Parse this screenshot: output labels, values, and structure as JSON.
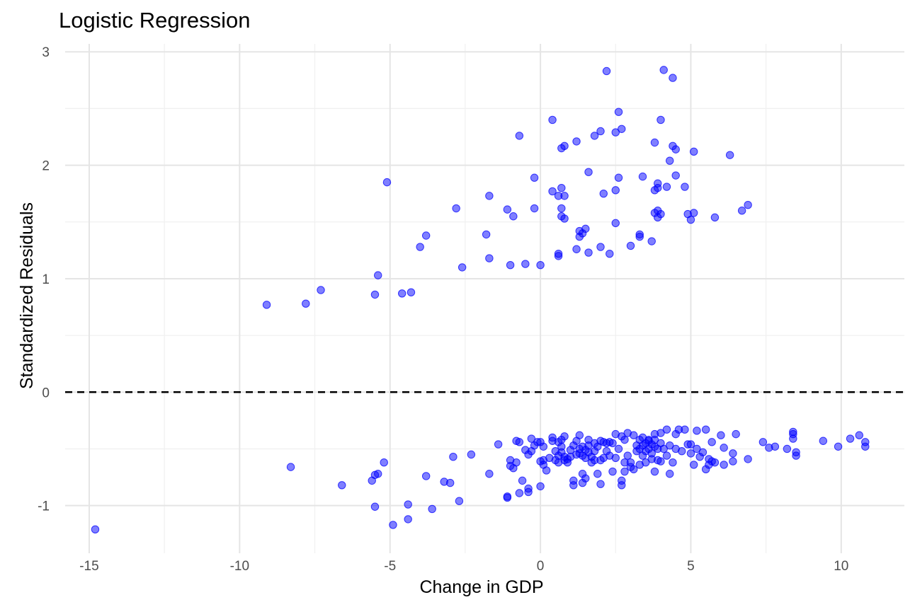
{
  "chart_data": {
    "type": "scatter",
    "title": "Logistic Regression",
    "xlabel": "Change in GDP",
    "ylabel": "Standardized Residuals",
    "xlim": [
      -15.8,
      12.1
    ],
    "ylim": [
      -1.42,
      3.07
    ],
    "x_ticks": [
      -15,
      -10,
      -5,
      0,
      5,
      10
    ],
    "x_tick_labels": [
      "-15",
      "-10",
      "-5",
      "0",
      "5",
      "10"
    ],
    "y_ticks": [
      -1,
      0,
      1,
      2,
      3
    ],
    "y_tick_labels": [
      "-1",
      "0",
      "1",
      "2",
      "3"
    ],
    "x_minor_ticks": [
      -12.5,
      -7.5,
      -2.5,
      2.5,
      7.5
    ],
    "y_minor_ticks": [
      -0.5,
      0.5,
      1.5,
      2.5
    ],
    "grid": true,
    "reference_line": {
      "y": 0,
      "style": "dashed",
      "color": "#000000"
    },
    "point_color": "#0000FF",
    "points": [
      [
        -14.8,
        -1.21
      ],
      [
        -9.1,
        0.77
      ],
      [
        -7.8,
        0.78
      ],
      [
        -7.3,
        0.9
      ],
      [
        -5.4,
        1.03
      ],
      [
        -5.5,
        0.86
      ],
      [
        -5.1,
        1.85
      ],
      [
        -4.6,
        0.87
      ],
      [
        -4.3,
        0.88
      ],
      [
        -4.0,
        1.28
      ],
      [
        -3.8,
        1.38
      ],
      [
        -2.8,
        1.62
      ],
      [
        -2.6,
        1.1
      ],
      [
        -1.8,
        1.39
      ],
      [
        -1.7,
        1.73
      ],
      [
        -1.7,
        1.18
      ],
      [
        -1.1,
        1.61
      ],
      [
        -1.0,
        1.12
      ],
      [
        -0.9,
        1.55
      ],
      [
        -0.7,
        2.26
      ],
      [
        -0.5,
        1.13
      ],
      [
        -0.2,
        1.89
      ],
      [
        -0.2,
        1.62
      ],
      [
        0.0,
        1.12
      ],
      [
        0.4,
        2.4
      ],
      [
        0.4,
        1.77
      ],
      [
        0.6,
        1.73
      ],
      [
        0.6,
        1.22
      ],
      [
        0.6,
        1.2
      ],
      [
        0.7,
        2.15
      ],
      [
        0.7,
        1.8
      ],
      [
        0.7,
        1.62
      ],
      [
        0.7,
        1.55
      ],
      [
        0.8,
        2.17
      ],
      [
        0.8,
        1.53
      ],
      [
        0.8,
        1.73
      ],
      [
        1.2,
        2.21
      ],
      [
        1.2,
        1.26
      ],
      [
        1.3,
        1.37
      ],
      [
        1.3,
        1.42
      ],
      [
        1.4,
        1.4
      ],
      [
        1.5,
        1.44
      ],
      [
        1.6,
        1.94
      ],
      [
        1.6,
        1.23
      ],
      [
        1.8,
        2.26
      ],
      [
        2.0,
        2.3
      ],
      [
        2.0,
        1.28
      ],
      [
        2.1,
        1.75
      ],
      [
        2.2,
        2.83
      ],
      [
        2.3,
        1.22
      ],
      [
        2.5,
        2.29
      ],
      [
        2.5,
        1.78
      ],
      [
        2.6,
        2.47
      ],
      [
        2.6,
        1.89
      ],
      [
        2.5,
        1.49
      ],
      [
        2.7,
        2.32
      ],
      [
        3.0,
        1.29
      ],
      [
        3.3,
        1.39
      ],
      [
        3.3,
        1.37
      ],
      [
        3.4,
        1.9
      ],
      [
        3.7,
        1.33
      ],
      [
        3.8,
        1.58
      ],
      [
        3.8,
        1.78
      ],
      [
        3.8,
        2.2
      ],
      [
        3.9,
        1.6
      ],
      [
        3.9,
        1.84
      ],
      [
        3.9,
        1.8
      ],
      [
        3.9,
        1.54
      ],
      [
        4.0,
        2.4
      ],
      [
        4.0,
        1.57
      ],
      [
        4.1,
        2.84
      ],
      [
        4.2,
        1.81
      ],
      [
        4.3,
        2.04
      ],
      [
        4.4,
        2.17
      ],
      [
        4.4,
        2.77
      ],
      [
        4.5,
        2.14
      ],
      [
        4.5,
        1.91
      ],
      [
        4.8,
        1.81
      ],
      [
        4.9,
        1.57
      ],
      [
        5.0,
        1.52
      ],
      [
        5.1,
        1.58
      ],
      [
        5.1,
        2.12
      ],
      [
        5.8,
        1.54
      ],
      [
        6.3,
        2.09
      ],
      [
        6.7,
        1.6
      ],
      [
        6.9,
        1.65
      ],
      [
        -8.3,
        -0.66
      ],
      [
        -6.6,
        -0.82
      ],
      [
        -5.6,
        -0.78
      ],
      [
        -5.5,
        -0.73
      ],
      [
        -5.4,
        -0.72
      ],
      [
        -5.5,
        -1.01
      ],
      [
        -5.2,
        -0.62
      ],
      [
        -4.9,
        -1.17
      ],
      [
        -4.4,
        -0.99
      ],
      [
        -4.4,
        -1.12
      ],
      [
        -3.8,
        -0.74
      ],
      [
        -3.6,
        -1.03
      ],
      [
        -3.2,
        -0.79
      ],
      [
        -3.0,
        -0.8
      ],
      [
        -2.9,
        -0.57
      ],
      [
        -2.7,
        -0.96
      ],
      [
        -2.3,
        -0.55
      ],
      [
        -1.7,
        -0.72
      ],
      [
        -1.4,
        -0.46
      ],
      [
        -1.1,
        -0.92
      ],
      [
        -1.1,
        -0.93
      ],
      [
        -1.0,
        -0.65
      ],
      [
        -1.0,
        -0.6
      ],
      [
        -0.9,
        -0.67
      ],
      [
        -0.8,
        -0.62
      ],
      [
        -0.8,
        -0.43
      ],
      [
        -0.7,
        -0.44
      ],
      [
        -0.7,
        -0.89
      ],
      [
        -0.6,
        -0.78
      ],
      [
        -0.5,
        -0.51
      ],
      [
        -0.4,
        -0.88
      ],
      [
        -0.4,
        -0.85
      ],
      [
        -0.4,
        -0.55
      ],
      [
        -0.3,
        -0.52
      ],
      [
        -0.3,
        -0.41
      ],
      [
        -0.2,
        -0.47
      ],
      [
        -0.1,
        -0.44
      ],
      [
        0.0,
        -0.61
      ],
      [
        0.0,
        -0.83
      ],
      [
        0.0,
        -0.44
      ],
      [
        0.1,
        -0.6
      ],
      [
        0.1,
        -0.48
      ],
      [
        0.1,
        -0.64
      ],
      [
        0.2,
        -0.69
      ],
      [
        0.3,
        -0.58
      ],
      [
        0.4,
        -0.43
      ],
      [
        0.4,
        -0.4
      ],
      [
        0.5,
        -0.6
      ],
      [
        0.5,
        -0.52
      ],
      [
        0.6,
        -0.44
      ],
      [
        0.6,
        -0.56
      ],
      [
        0.6,
        -0.62
      ],
      [
        0.7,
        -0.48
      ],
      [
        0.7,
        -0.42
      ],
      [
        0.7,
        -0.53
      ],
      [
        0.8,
        -0.57
      ],
      [
        0.8,
        -0.6
      ],
      [
        0.8,
        -0.39
      ],
      [
        0.9,
        -0.62
      ],
      [
        0.9,
        -0.59
      ],
      [
        1.0,
        -0.57
      ],
      [
        1.0,
        -0.51
      ],
      [
        1.1,
        -0.82
      ],
      [
        1.1,
        -0.78
      ],
      [
        1.1,
        -0.47
      ],
      [
        1.2,
        -0.55
      ],
      [
        1.2,
        -0.43
      ],
      [
        1.3,
        -0.38
      ],
      [
        1.3,
        -0.5
      ],
      [
        1.3,
        -0.54
      ],
      [
        1.4,
        -0.48
      ],
      [
        1.4,
        -0.56
      ],
      [
        1.4,
        -0.72
      ],
      [
        1.4,
        -0.8
      ],
      [
        1.5,
        -0.51
      ],
      [
        1.5,
        -0.76
      ],
      [
        1.5,
        -0.58
      ],
      [
        1.6,
        -0.47
      ],
      [
        1.6,
        -0.53
      ],
      [
        1.6,
        -0.42
      ],
      [
        1.7,
        -0.62
      ],
      [
        1.7,
        -0.57
      ],
      [
        1.8,
        -0.52
      ],
      [
        1.8,
        -0.6
      ],
      [
        1.8,
        -0.45
      ],
      [
        1.9,
        -0.48
      ],
      [
        1.9,
        -0.72
      ],
      [
        2.0,
        -0.43
      ],
      [
        2.0,
        -0.6
      ],
      [
        2.0,
        -0.81
      ],
      [
        2.1,
        -0.44
      ],
      [
        2.1,
        -0.58
      ],
      [
        2.2,
        -0.52
      ],
      [
        2.2,
        -0.45
      ],
      [
        2.3,
        -0.56
      ],
      [
        2.3,
        -0.44
      ],
      [
        2.4,
        -0.7
      ],
      [
        2.4,
        -0.45
      ],
      [
        2.5,
        -0.58
      ],
      [
        2.5,
        -0.37
      ],
      [
        2.6,
        -0.5
      ],
      [
        2.7,
        -0.82
      ],
      [
        2.7,
        -0.78
      ],
      [
        2.7,
        -0.39
      ],
      [
        2.8,
        -0.62
      ],
      [
        2.8,
        -0.7
      ],
      [
        2.8,
        -0.42
      ],
      [
        2.9,
        -0.36
      ],
      [
        2.9,
        -0.56
      ],
      [
        3.0,
        -0.62
      ],
      [
        3.0,
        -0.66
      ],
      [
        3.1,
        -0.38
      ],
      [
        3.1,
        -0.68
      ],
      [
        3.2,
        -0.52
      ],
      [
        3.2,
        -0.47
      ],
      [
        3.3,
        -0.42
      ],
      [
        3.3,
        -0.5
      ],
      [
        3.3,
        -0.64
      ],
      [
        3.4,
        -0.56
      ],
      [
        3.4,
        -0.47
      ],
      [
        3.4,
        -0.4
      ],
      [
        3.5,
        -0.45
      ],
      [
        3.5,
        -0.62
      ],
      [
        3.5,
        -0.52
      ],
      [
        3.6,
        -0.42
      ],
      [
        3.6,
        -0.5
      ],
      [
        3.6,
        -0.43
      ],
      [
        3.7,
        -0.46
      ],
      [
        3.7,
        -0.59
      ],
      [
        3.7,
        -0.54
      ],
      [
        3.8,
        -0.37
      ],
      [
        3.8,
        -0.48
      ],
      [
        3.8,
        -0.42
      ],
      [
        3.8,
        -0.7
      ],
      [
        3.9,
        -0.6
      ],
      [
        3.9,
        -0.5
      ],
      [
        4.0,
        -0.45
      ],
      [
        4.0,
        -0.61
      ],
      [
        4.0,
        -0.36
      ],
      [
        4.1,
        -0.5
      ],
      [
        4.2,
        -0.56
      ],
      [
        4.2,
        -0.33
      ],
      [
        4.3,
        -0.47
      ],
      [
        4.3,
        -0.72
      ],
      [
        4.4,
        -0.62
      ],
      [
        4.5,
        -0.5
      ],
      [
        4.5,
        -0.37
      ],
      [
        4.6,
        -0.33
      ],
      [
        4.7,
        -0.52
      ],
      [
        4.8,
        -0.33
      ],
      [
        4.9,
        -0.46
      ],
      [
        5.0,
        -0.54
      ],
      [
        5.0,
        -0.46
      ],
      [
        5.1,
        -0.64
      ],
      [
        5.2,
        -0.5
      ],
      [
        5.2,
        -0.34
      ],
      [
        5.3,
        -0.57
      ],
      [
        5.4,
        -0.53
      ],
      [
        5.5,
        -0.33
      ],
      [
        5.5,
        -0.68
      ],
      [
        5.6,
        -0.64
      ],
      [
        5.6,
        -0.59
      ],
      [
        5.7,
        -0.44
      ],
      [
        5.7,
        -0.61
      ],
      [
        5.8,
        -0.62
      ],
      [
        6.0,
        -0.38
      ],
      [
        6.1,
        -0.64
      ],
      [
        6.1,
        -0.49
      ],
      [
        6.4,
        -0.54
      ],
      [
        6.4,
        -0.61
      ],
      [
        6.5,
        -0.37
      ],
      [
        6.9,
        -0.59
      ],
      [
        7.4,
        -0.44
      ],
      [
        7.6,
        -0.49
      ],
      [
        7.8,
        -0.48
      ],
      [
        8.2,
        -0.5
      ],
      [
        8.4,
        -0.41
      ],
      [
        8.4,
        -0.37
      ],
      [
        8.4,
        -0.35
      ],
      [
        8.5,
        -0.56
      ],
      [
        8.5,
        -0.53
      ],
      [
        9.4,
        -0.43
      ],
      [
        9.9,
        -0.48
      ],
      [
        10.3,
        -0.41
      ],
      [
        10.6,
        -0.38
      ],
      [
        10.8,
        -0.48
      ],
      [
        10.8,
        -0.44
      ]
    ]
  }
}
